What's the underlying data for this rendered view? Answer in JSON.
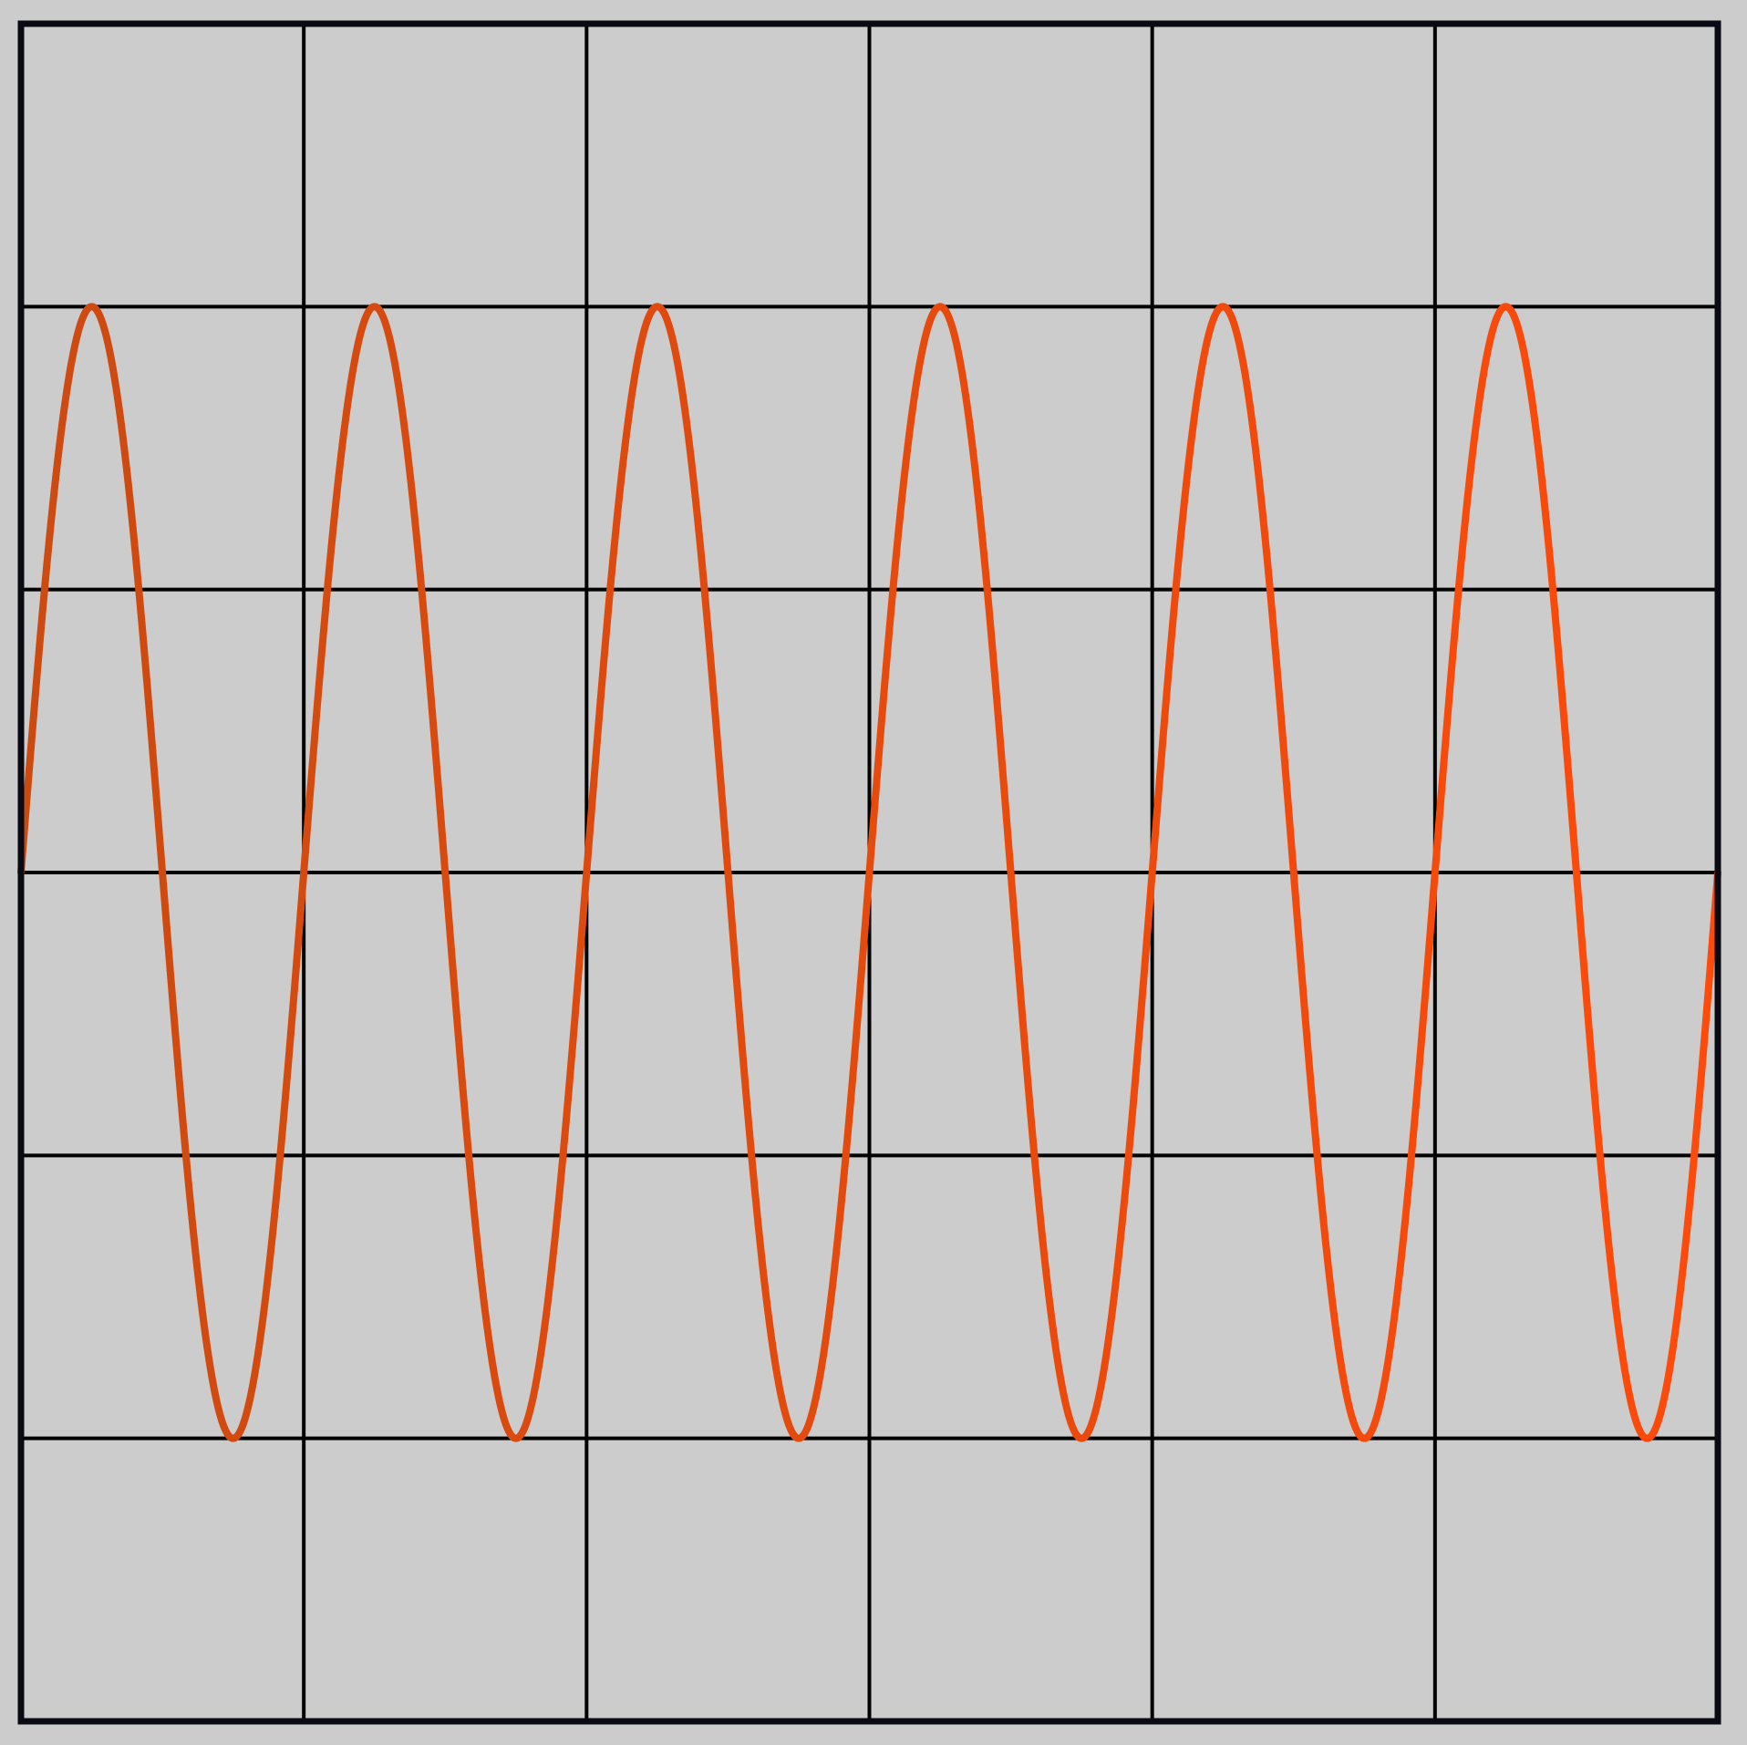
{
  "chart_data": {
    "type": "line",
    "xlim": [
      0,
      6
    ],
    "ylim": [
      -3,
      3
    ],
    "grid": true,
    "grid_divisions": {
      "x": 6,
      "y": 6
    },
    "background_color": "#cccccc",
    "grid_color": "#000000",
    "frame_color": "#0a0a14",
    "series": [
      {
        "kind": "sine",
        "amplitude": 2,
        "cycles_per_x_unit": 1,
        "phase": 0,
        "offset": 0,
        "x_start": 0,
        "x_end": 6,
        "color_start": "#cc4a10",
        "color_end": "#ff4a0a"
      }
    ]
  }
}
